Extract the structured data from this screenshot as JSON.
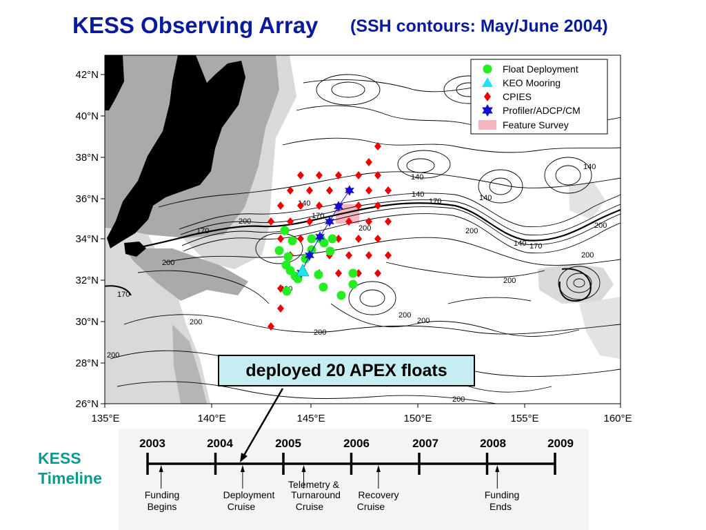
{
  "title": "KESS Observing Array",
  "subtitle": "(SSH contours: May/June 2004)",
  "map": {
    "lat_labels": [
      "42°N",
      "40°N",
      "38°N",
      "36°N",
      "34°N",
      "32°N",
      "30°N",
      "28°N",
      "26°N"
    ],
    "lon_labels": [
      "135°E",
      "140°E",
      "145°E",
      "150°E",
      "155°E",
      "160°E"
    ],
    "contour_labels": [
      "140",
      "140",
      "140",
      "140",
      "140",
      "140",
      "170",
      "170",
      "170",
      "170",
      "170",
      "200",
      "200",
      "200",
      "200",
      "200",
      "200",
      "200",
      "200",
      "200",
      "200",
      "200",
      "200",
      "200",
      "200"
    ],
    "colors": {
      "land": "#000000",
      "shelf": "#aaaaaa",
      "shallow": "#d9d9d9",
      "float": "#22ee22",
      "keo": "#22e4f0",
      "cpies": "#ee0000",
      "profiler": "#1010cc",
      "survey": "#f6b6bf"
    }
  },
  "legend": {
    "items": [
      {
        "label": "Float Deployment",
        "icon": "green-circle"
      },
      {
        "label": "KEO Mooring",
        "icon": "cyan-triangle"
      },
      {
        "label": "CPIES",
        "icon": "red-diamond"
      },
      {
        "label": "Profiler/ADCP/CM",
        "icon": "blue-star"
      },
      {
        "label": "Feature Survey",
        "icon": "pink-rectangle"
      }
    ]
  },
  "callout": {
    "text": "deployed 20 APEX floats"
  },
  "timeline": {
    "side_label_line1": "KESS",
    "side_label_line2": "Timeline",
    "years": [
      "2003",
      "2004",
      "2005",
      "2006",
      "2007",
      "2008",
      "2009"
    ],
    "events": [
      {
        "line1": "Funding",
        "line2": "Begins",
        "year": 2003.2
      },
      {
        "line1": "Deployment",
        "line2": "Cruise",
        "year": 2004.4
      },
      {
        "line1": "Telemetry  &",
        "line2": "Turnaround",
        "line3": "Cruise",
        "year": 2005.3
      },
      {
        "line1": "Recovery",
        "line2": "Cruise",
        "year": 2006.4
      },
      {
        "line1": "Funding",
        "line2": "Ends",
        "year": 2008.15
      }
    ]
  }
}
